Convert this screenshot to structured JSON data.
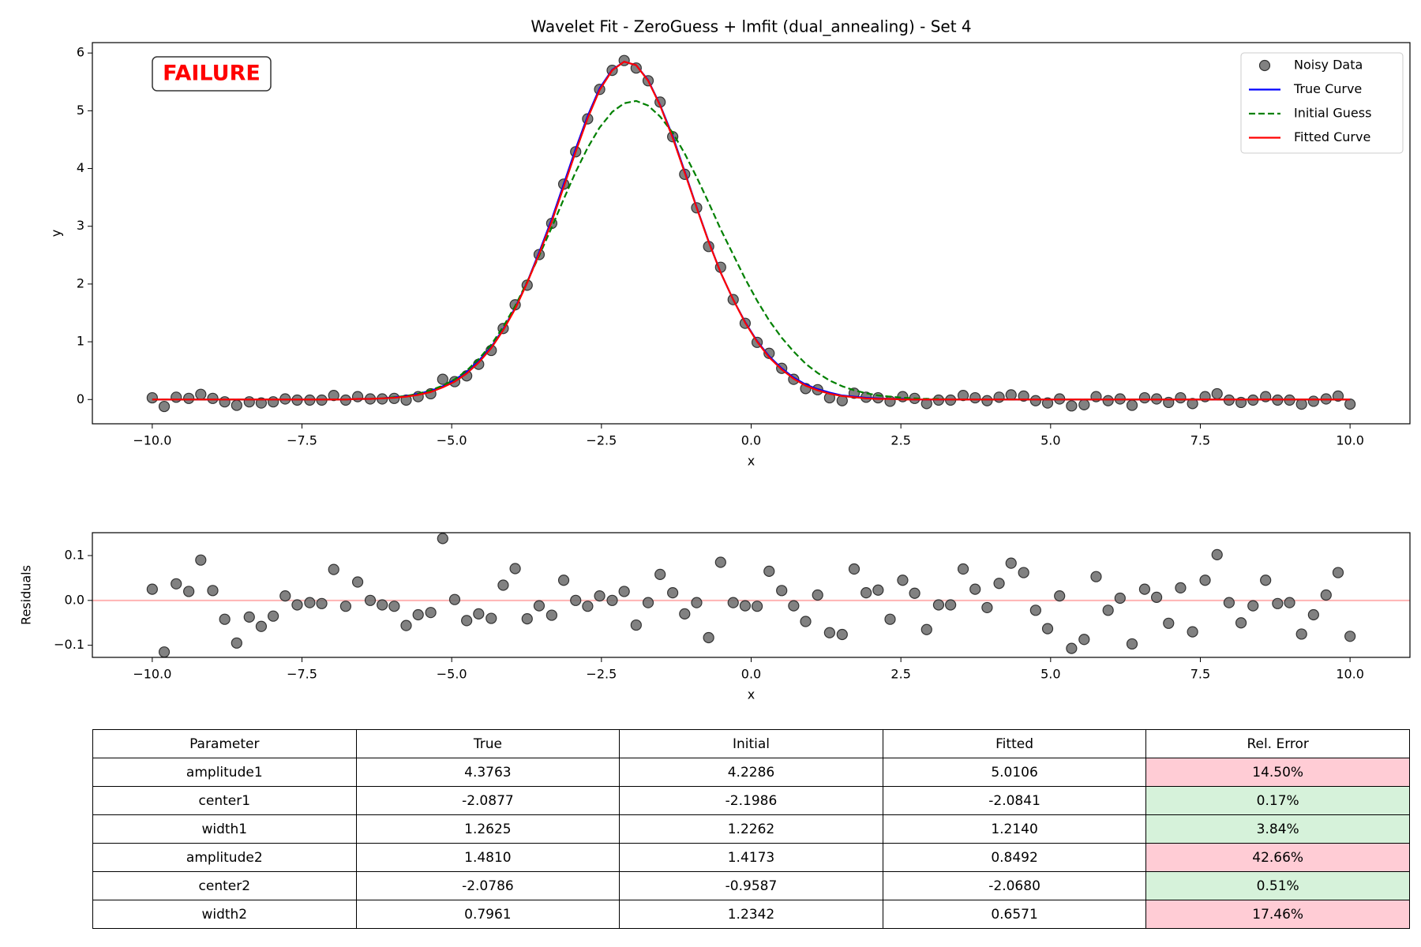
{
  "chart_data": [
    {
      "type": "line",
      "title": "Wavelet Fit - ZeroGuess + lmfit (dual_annealing) - Set 4",
      "xlabel": "x",
      "ylabel": "y",
      "annotation": "FAILURE",
      "legend": "upper right",
      "xlim": [
        -11,
        11
      ],
      "ylim": [
        -0.42,
        6.18
      ],
      "xticks": [
        {
          "value": -10,
          "label": "−10.0"
        },
        {
          "value": -7.5,
          "label": "−7.5"
        },
        {
          "value": -5,
          "label": "−5.0"
        },
        {
          "value": -2.5,
          "label": "−2.5"
        },
        {
          "value": 0,
          "label": "0.0"
        },
        {
          "value": 2.5,
          "label": "2.5"
        },
        {
          "value": 5,
          "label": "5.0"
        },
        {
          "value": 7.5,
          "label": "7.5"
        },
        {
          "value": 10,
          "label": "10.0"
        }
      ],
      "yticks": [
        0,
        1,
        2,
        3,
        4,
        5,
        6
      ],
      "x": [
        -10.0,
        -9.8,
        -9.6,
        -9.39,
        -9.19,
        -8.99,
        -8.79,
        -8.59,
        -8.38,
        -8.18,
        -7.98,
        -7.78,
        -7.58,
        -7.37,
        -7.17,
        -6.97,
        -6.77,
        -6.57,
        -6.36,
        -6.16,
        -5.96,
        -5.76,
        -5.56,
        -5.35,
        -5.15,
        -4.95,
        -4.75,
        -4.55,
        -4.34,
        -4.14,
        -3.94,
        -3.74,
        -3.54,
        -3.33,
        -3.13,
        -2.93,
        -2.73,
        -2.53,
        -2.32,
        -2.12,
        -1.92,
        -1.72,
        -1.52,
        -1.31,
        -1.11,
        -0.91,
        -0.71,
        -0.51,
        -0.3,
        -0.1,
        0.1,
        0.3,
        0.51,
        0.71,
        0.91,
        1.11,
        1.31,
        1.52,
        1.72,
        1.92,
        2.12,
        2.32,
        2.53,
        2.73,
        2.93,
        3.13,
        3.33,
        3.54,
        3.74,
        3.94,
        4.14,
        4.34,
        4.55,
        4.75,
        4.95,
        5.15,
        5.35,
        5.56,
        5.76,
        5.96,
        6.16,
        6.36,
        6.57,
        6.77,
        6.97,
        7.17,
        7.37,
        7.58,
        7.78,
        7.98,
        8.18,
        8.38,
        8.59,
        8.79,
        8.99,
        9.19,
        9.39,
        9.6,
        9.8,
        10.0
      ],
      "series": [
        {
          "name": "Noisy Data",
          "color": "#6b6b6b",
          "style": "marker",
          "values": [
            0.03,
            -0.12,
            0.04,
            0.02,
            0.09,
            0.02,
            -0.04,
            -0.1,
            -0.04,
            -0.06,
            -0.04,
            0.01,
            -0.01,
            -0.01,
            -0.01,
            0.07,
            -0.01,
            0.05,
            0.01,
            0.01,
            0.02,
            -0.01,
            0.05,
            0.1,
            0.35,
            0.31,
            0.41,
            0.61,
            0.85,
            1.23,
            1.64,
            1.98,
            2.51,
            3.05,
            3.73,
            4.29,
            4.86,
            5.37,
            5.7,
            5.87,
            5.74,
            5.52,
            5.15,
            4.55,
            3.9,
            3.32,
            2.65,
            2.29,
            1.73,
            1.32,
            0.99,
            0.8,
            0.54,
            0.35,
            0.19,
            0.17,
            0.03,
            -0.02,
            0.11,
            0.04,
            0.03,
            -0.03,
            0.05,
            0.02,
            -0.07,
            -0.01,
            -0.01,
            0.07,
            0.03,
            -0.02,
            0.04,
            0.08,
            0.06,
            -0.02,
            -0.06,
            0.01,
            -0.11,
            -0.09,
            0.05,
            -0.02,
            0.01,
            -0.1,
            0.03,
            0.01,
            -0.05,
            0.03,
            -0.07,
            0.05,
            0.1,
            -0.01,
            -0.05,
            -0.01,
            0.05,
            -0.01,
            -0.01,
            -0.08,
            -0.03,
            0.01,
            0.06,
            -0.08
          ]
        },
        {
          "name": "True Curve",
          "color": "#0000ff",
          "style": "solid",
          "values": [
            0,
            0,
            0,
            0,
            0,
            0,
            0,
            0,
            0,
            0,
            0,
            0,
            0,
            0,
            0,
            0,
            0,
            0.01,
            0.01,
            0.02,
            0.04,
            0.06,
            0.1,
            0.15,
            0.23,
            0.34,
            0.48,
            0.67,
            0.91,
            1.22,
            1.59,
            2.03,
            2.55,
            3.12,
            3.73,
            4.34,
            4.91,
            5.39,
            5.71,
            5.85,
            5.79,
            5.53,
            5.1,
            4.56,
            3.95,
            3.33,
            2.74,
            2.2,
            1.73,
            1.34,
            1.01,
            0.75,
            0.54,
            0.38,
            0.26,
            0.18,
            0.12,
            0.07,
            0.05,
            0.03,
            0.02,
            0.01,
            0.01,
            0,
            0,
            0,
            0,
            0,
            0,
            0,
            0,
            0,
            0,
            0,
            0,
            0,
            0,
            0,
            0,
            0,
            0,
            0,
            0,
            0,
            0,
            0,
            0,
            0,
            0,
            0,
            0,
            0,
            0,
            0,
            0,
            0,
            0,
            0,
            0,
            0
          ]
        },
        {
          "name": "Initial Guess",
          "color": "#008000",
          "style": "dashed",
          "values": [
            0,
            0,
            0,
            0,
            0,
            0,
            0,
            0,
            0,
            0,
            0,
            0,
            0,
            0,
            0,
            0,
            0,
            0.01,
            0.01,
            0.02,
            0.04,
            0.06,
            0.1,
            0.16,
            0.24,
            0.35,
            0.5,
            0.7,
            0.95,
            1.26,
            1.62,
            2.04,
            2.49,
            2.98,
            3.47,
            3.94,
            4.36,
            4.71,
            4.98,
            5.13,
            5.17,
            5.09,
            4.9,
            4.62,
            4.26,
            3.85,
            3.41,
            2.95,
            2.51,
            2.09,
            1.71,
            1.37,
            1.07,
            0.83,
            0.62,
            0.46,
            0.33,
            0.23,
            0.16,
            0.11,
            0.07,
            0.05,
            0.03,
            0.02,
            0.01,
            0.01,
            0,
            0,
            0,
            0,
            0,
            0,
            0,
            0,
            0,
            0,
            0,
            0,
            0,
            0,
            0,
            0,
            0,
            0,
            0,
            0,
            0,
            0,
            0,
            0,
            0,
            0,
            0,
            0,
            0,
            0,
            0,
            0,
            0,
            0
          ]
        },
        {
          "name": "Fitted Curve",
          "color": "#ff0000",
          "style": "solid",
          "values": [
            0,
            0,
            0,
            0,
            0,
            0,
            0,
            0,
            0,
            0,
            0,
            0,
            0,
            0,
            0,
            0,
            0,
            0.01,
            0.01,
            0.02,
            0.03,
            0.05,
            0.08,
            0.13,
            0.21,
            0.31,
            0.45,
            0.64,
            0.89,
            1.2,
            1.57,
            2.02,
            2.52,
            3.08,
            3.68,
            4.29,
            4.87,
            5.36,
            5.7,
            5.85,
            5.79,
            5.52,
            5.09,
            4.53,
            3.93,
            3.32,
            2.73,
            2.2,
            1.73,
            1.33,
            1.0,
            0.73,
            0.52,
            0.36,
            0.24,
            0.16,
            0.1,
            0.06,
            0.04,
            0.02,
            0.01,
            0.01,
            0,
            0,
            0,
            0,
            0,
            0,
            0,
            0,
            0,
            0,
            0,
            0,
            0,
            0,
            0,
            0,
            0,
            0,
            0,
            0,
            0,
            0,
            0,
            0,
            0,
            0,
            0,
            0,
            0,
            0,
            0,
            0,
            0,
            0,
            0,
            0,
            0,
            0
          ]
        }
      ]
    },
    {
      "type": "scatter",
      "xlabel": "x",
      "ylabel": "Residuals",
      "color": "#6b6b6b",
      "hline": 0,
      "hline_color": "#ffb3b3",
      "xlim": [
        -11,
        11
      ],
      "ylim": [
        -0.127,
        0.151
      ],
      "xticks": [
        {
          "value": -10,
          "label": "−10.0"
        },
        {
          "value": -7.5,
          "label": "−7.5"
        },
        {
          "value": -5,
          "label": "−5.0"
        },
        {
          "value": -2.5,
          "label": "−2.5"
        },
        {
          "value": 0,
          "label": "0.0"
        },
        {
          "value": 2.5,
          "label": "2.5"
        },
        {
          "value": 5,
          "label": "5.0"
        },
        {
          "value": 7.5,
          "label": "7.5"
        },
        {
          "value": 10,
          "label": "10.0"
        }
      ],
      "yticks": [
        {
          "value": -0.1,
          "label": "−0.1"
        },
        {
          "value": 0,
          "label": "0.0"
        },
        0.1
      ],
      "x": [
        -10.0,
        -9.8,
        -9.6,
        -9.39,
        -9.19,
        -8.99,
        -8.79,
        -8.59,
        -8.38,
        -8.18,
        -7.98,
        -7.78,
        -7.58,
        -7.37,
        -7.17,
        -6.97,
        -6.77,
        -6.57,
        -6.36,
        -6.16,
        -5.96,
        -5.76,
        -5.56,
        -5.35,
        -5.15,
        -4.95,
        -4.75,
        -4.55,
        -4.34,
        -4.14,
        -3.94,
        -3.74,
        -3.54,
        -3.33,
        -3.13,
        -2.93,
        -2.73,
        -2.53,
        -2.32,
        -2.12,
        -1.92,
        -1.72,
        -1.52,
        -1.31,
        -1.11,
        -0.91,
        -0.71,
        -0.51,
        -0.3,
        -0.1,
        0.1,
        0.3,
        0.51,
        0.71,
        0.91,
        1.11,
        1.31,
        1.52,
        1.72,
        1.92,
        2.12,
        2.32,
        2.53,
        2.73,
        2.93,
        3.13,
        3.33,
        3.54,
        3.74,
        3.94,
        4.14,
        4.34,
        4.55,
        4.75,
        4.95,
        5.15,
        5.35,
        5.56,
        5.76,
        5.96,
        6.16,
        6.36,
        6.57,
        6.77,
        6.97,
        7.17,
        7.37,
        7.58,
        7.78,
        7.98,
        8.18,
        8.38,
        8.59,
        8.79,
        8.99,
        9.19,
        9.39,
        9.6,
        9.8,
        10.0
      ],
      "values": [
        0.025,
        -0.115,
        0.037,
        0.02,
        0.09,
        0.022,
        -0.042,
        -0.095,
        -0.037,
        -0.058,
        -0.035,
        0.01,
        -0.01,
        -0.005,
        -0.007,
        0.069,
        -0.013,
        0.041,
        0.0,
        -0.01,
        -0.013,
        -0.056,
        -0.032,
        -0.027,
        0.138,
        0.002,
        -0.045,
        -0.03,
        -0.04,
        0.034,
        0.071,
        -0.041,
        -0.012,
        -0.033,
        0.045,
        0.0,
        -0.013,
        0.01,
        0.0,
        0.02,
        -0.055,
        -0.005,
        0.058,
        0.017,
        -0.03,
        -0.005,
        -0.083,
        0.085,
        -0.005,
        -0.012,
        -0.013,
        0.065,
        0.022,
        -0.012,
        -0.047,
        0.012,
        -0.072,
        -0.076,
        0.07,
        0.017,
        0.023,
        -0.042,
        0.045,
        0.016,
        -0.065,
        -0.01,
        -0.01,
        0.07,
        0.025,
        -0.016,
        0.038,
        0.083,
        0.062,
        -0.022,
        -0.063,
        0.01,
        -0.107,
        -0.087,
        0.053,
        -0.022,
        0.005,
        -0.097,
        0.025,
        0.007,
        -0.051,
        0.028,
        -0.07,
        0.045,
        0.102,
        -0.005,
        -0.05,
        -0.012,
        0.045,
        -0.007,
        -0.005,
        -0.075,
        -0.032,
        0.012,
        0.062,
        -0.08
      ]
    }
  ],
  "table": {
    "header": [
      "Parameter",
      "True",
      "Initial",
      "Fitted",
      "Rel. Error"
    ],
    "rows": [
      [
        "amplitude1",
        "4.3763",
        "4.2286",
        "5.0106",
        "14.50%"
      ],
      [
        "center1",
        "-2.0877",
        "-2.1986",
        "-2.0841",
        "0.17%"
      ],
      [
        "width1",
        "1.2625",
        "1.2262",
        "1.2140",
        "3.84%"
      ],
      [
        "amplitude2",
        "1.4810",
        "1.4173",
        "0.8492",
        "42.66%"
      ],
      [
        "center2",
        "-2.0786",
        "-0.9587",
        "-2.0680",
        "0.51%"
      ],
      [
        "width2",
        "0.7961",
        "1.2342",
        "0.6571",
        "17.46%"
      ]
    ],
    "highlight": [
      "#ffccd5",
      "#d6f2da",
      "#d6f2da",
      "#ffccd5",
      "#d6f2da",
      "#ffccd5"
    ]
  }
}
